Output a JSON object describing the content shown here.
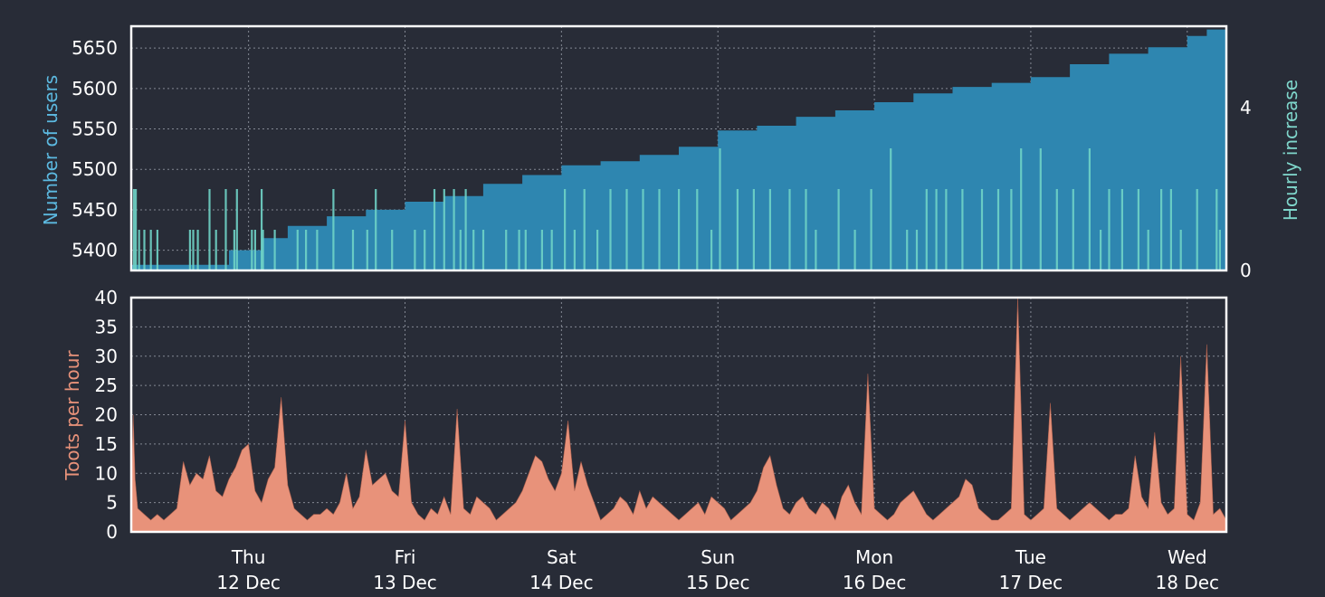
{
  "theme": {
    "background": "#282c37",
    "frame": "#ffffff",
    "grid": "#9aa0aa",
    "users_fill": "#2e86b0",
    "increase_fill": "#6fd3c7",
    "toots_fill": "#e8927a",
    "users_label_color": "#5cb9e0",
    "increase_label_color": "#7fd6cb",
    "toots_label_color": "#e8927a",
    "tick_color": "#ffffff"
  },
  "chart_data": [
    {
      "type": "area",
      "panel": "users",
      "ylabel": "Number of users",
      "ylabel_right": "Hourly increase",
      "ylim": [
        5375,
        5677
      ],
      "yticks": [
        "5400",
        "5450",
        "5500",
        "5550",
        "5600",
        "5650"
      ],
      "right_ylim": [
        0,
        6
      ],
      "right_yticks": [
        "0",
        "4"
      ],
      "xlim": [
        0,
        168
      ],
      "grid": true,
      "series": [
        {
          "name": "",
          "kind": "area",
          "x": [
            0,
            6,
            10,
            15,
            20,
            24,
            30,
            36,
            42,
            48,
            54,
            60,
            66,
            72,
            78,
            84,
            90,
            96,
            102,
            108,
            114,
            120,
            126,
            132,
            138,
            144,
            150,
            156,
            162,
            165,
            168
          ],
          "values": [
            5382,
            5382,
            5382,
            5400,
            5415,
            5430,
            5442,
            5450,
            5460,
            5467,
            5482,
            5493,
            5505,
            5510,
            5518,
            5528,
            5548,
            5554,
            5565,
            5573,
            5583,
            5594,
            5602,
            5607,
            5614,
            5630,
            5643,
            5651,
            5665,
            5673,
            5675
          ]
        },
        {
          "name": "",
          "kind": "spikes",
          "axis": "right",
          "x": [
            0.4,
            0.7,
            1.2,
            2.0,
            3.0,
            4.0,
            9.0,
            9.5,
            10.2,
            12.0,
            13.0,
            14.5,
            15.8,
            16.2,
            18.5,
            19.0,
            20.0,
            20.2,
            22.0,
            25.5,
            26.8,
            28.5,
            31.0,
            34.0,
            36.2,
            37.5,
            40.0,
            43.5,
            45.0,
            46.5,
            48.0,
            49.5,
            50.5,
            51.3,
            52.5,
            54.0,
            57.5,
            59.5,
            60.5,
            63.0,
            64.5,
            66.5,
            68.0,
            69.5,
            71.5,
            73.5,
            76.0,
            78.5,
            81.0,
            84.0,
            86.8,
            89.0,
            90.3,
            93.0,
            95.5,
            98.0,
            101.0,
            103.5,
            105.0,
            108.5,
            111.0,
            113.5,
            116.5,
            119.0,
            120.5,
            122.0,
            123.5,
            125.0,
            127.5,
            130.5,
            133.0,
            135.0,
            136.5,
            139.5,
            142.0,
            144.5,
            147.0,
            148.7,
            150.0,
            152.0,
            154.5,
            156.0,
            158.0,
            159.5,
            161.0,
            163.5,
            166.5,
            167.0
          ],
          "values": [
            2,
            2,
            1,
            1,
            1,
            1,
            1,
            1,
            1,
            2,
            1,
            2,
            1,
            2,
            1,
            1,
            2,
            1,
            1,
            1,
            1,
            1,
            2,
            1,
            1,
            2,
            1,
            1,
            1,
            2,
            2,
            2,
            1,
            2,
            1,
            1,
            1,
            1,
            1,
            1,
            1,
            2,
            1,
            2,
            1,
            2,
            2,
            2,
            2,
            2,
            2,
            1,
            3,
            2,
            2,
            2,
            2,
            2,
            1,
            2,
            1,
            2,
            3,
            1,
            1,
            2,
            2,
            2,
            2,
            2,
            2,
            2,
            3,
            3,
            2,
            2,
            3,
            1,
            2,
            2,
            2,
            1,
            2,
            2,
            1,
            2,
            2,
            1
          ]
        }
      ]
    },
    {
      "type": "area",
      "panel": "toots",
      "ylabel": "Toots per hour",
      "ylim": [
        0,
        40
      ],
      "yticks": [
        "0",
        "5",
        "10",
        "15",
        "20",
        "25",
        "30",
        "35",
        "40"
      ],
      "xlim": [
        0,
        168
      ],
      "grid": true,
      "x_ticks": [
        {
          "x": 18,
          "day": "Thu",
          "date": "12 Dec"
        },
        {
          "x": 42,
          "day": "Fri",
          "date": "13 Dec"
        },
        {
          "x": 66,
          "day": "Sat",
          "date": "14 Dec"
        },
        {
          "x": 90,
          "day": "Sun",
          "date": "15 Dec"
        },
        {
          "x": 114,
          "day": "Mon",
          "date": "16 Dec"
        },
        {
          "x": 138,
          "day": "Tue",
          "date": "17 Dec"
        },
        {
          "x": 162,
          "day": "Wed",
          "date": "18 Dec"
        }
      ],
      "series": [
        {
          "name": "",
          "kind": "area",
          "x": [
            0,
            0.3,
            0.6,
            1,
            2,
            3,
            4,
            5,
            6,
            7,
            8,
            9,
            10,
            11,
            12,
            13,
            14,
            15,
            16,
            17,
            18,
            19,
            20,
            21,
            22,
            23,
            24,
            25,
            26,
            27,
            28,
            29,
            30,
            31,
            32,
            33,
            34,
            35,
            36,
            37,
            38,
            39,
            40,
            41,
            42,
            43,
            44,
            45,
            46,
            47,
            48,
            49,
            50,
            51,
            52,
            53,
            54,
            55,
            56,
            57,
            58,
            59,
            60,
            61,
            62,
            63,
            64,
            65,
            66,
            67,
            68,
            69,
            70,
            71,
            72,
            73,
            74,
            75,
            76,
            77,
            78,
            79,
            80,
            81,
            82,
            83,
            84,
            85,
            86,
            87,
            88,
            89,
            90,
            91,
            92,
            93,
            94,
            95,
            96,
            97,
            98,
            99,
            100,
            101,
            102,
            103,
            104,
            105,
            106,
            107,
            108,
            109,
            110,
            111,
            112,
            113,
            114,
            115,
            116,
            117,
            118,
            119,
            120,
            121,
            122,
            123,
            124,
            125,
            126,
            127,
            128,
            129,
            130,
            131,
            132,
            133,
            134,
            135,
            136,
            137,
            138,
            139,
            140,
            141,
            142,
            143,
            144,
            145,
            146,
            147,
            148,
            149,
            150,
            151,
            152,
            153,
            154,
            155,
            156,
            157,
            158,
            159,
            160,
            161,
            162,
            163,
            164,
            165,
            166,
            167,
            168
          ],
          "values": [
            7,
            20,
            9,
            4,
            3,
            2,
            3,
            2,
            3,
            4,
            12,
            8,
            10,
            9,
            13,
            7,
            6,
            9,
            11,
            14,
            15,
            7,
            5,
            9,
            11,
            23,
            8,
            4,
            3,
            2,
            3,
            3,
            4,
            3,
            5,
            10,
            4,
            6,
            14,
            8,
            9,
            10,
            7,
            6,
            19,
            5,
            3,
            2,
            4,
            3,
            6,
            3,
            21,
            4,
            3,
            6,
            5,
            4,
            2,
            3,
            4,
            5,
            7,
            10,
            13,
            12,
            9,
            7,
            10,
            19,
            7,
            12,
            8,
            5,
            2,
            3,
            4,
            6,
            5,
            3,
            7,
            4,
            6,
            5,
            4,
            3,
            2,
            3,
            4,
            5,
            3,
            6,
            5,
            4,
            2,
            3,
            4,
            5,
            7,
            11,
            13,
            8,
            4,
            3,
            5,
            6,
            4,
            3,
            5,
            4,
            2,
            6,
            8,
            5,
            3,
            27,
            4,
            3,
            2,
            3,
            5,
            6,
            7,
            5,
            3,
            2,
            3,
            4,
            5,
            6,
            9,
            8,
            4,
            3,
            2,
            2,
            3,
            4,
            40,
            3,
            2,
            3,
            4,
            22,
            4,
            3,
            2,
            3,
            4,
            5,
            4,
            3,
            2,
            3,
            3,
            4,
            13,
            6,
            4,
            17,
            5,
            3,
            4,
            30,
            3,
            2,
            5,
            32,
            3,
            4,
            2
          ]
        }
      ]
    }
  ]
}
